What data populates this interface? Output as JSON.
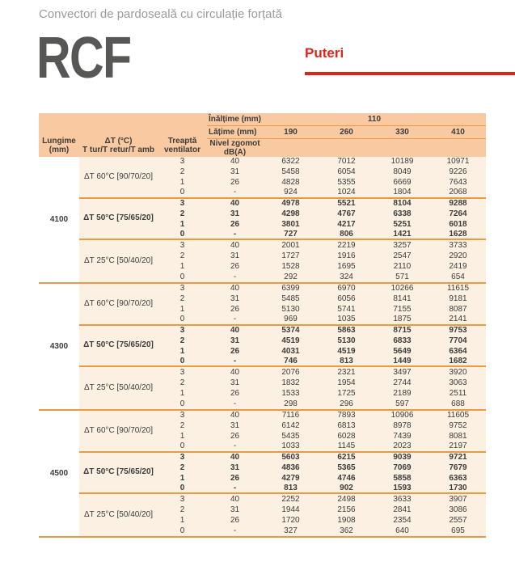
{
  "page": {
    "subtitle": "Convectori de pardoseală cu circulație forțată",
    "product": "RCF",
    "section_label": "Puteri"
  },
  "colors": {
    "accent_red": "#e2231a",
    "header_bg": "#f9c9a2",
    "row_bg": "#fcf0e2",
    "line_orange": "#ec9a3f",
    "text_dark": "#3c3c3b",
    "title_gray": "#575756",
    "subtitle_gray": "#9b9b9a"
  },
  "table": {
    "header": {
      "length_label": "Lungime\n(mm)",
      "dt_label": "ΔT (°C)\nT tur/T retur/T amb",
      "fan_label": "Treaptă\nventilator",
      "noise_label": "Nivel zgomot\ndB(A)",
      "height_label": "Înălțime (mm)",
      "height_value": "110",
      "width_label": "Lățime (mm)",
      "width_values": [
        "190",
        "260",
        "330",
        "410"
      ]
    },
    "fan_steps": [
      "3",
      "2",
      "1",
      "0"
    ],
    "noise_levels": [
      "40",
      "31",
      "26",
      "-"
    ],
    "groups": [
      {
        "length": "4100",
        "dt_blocks": [
          {
            "label": "ΔT 60°C [90/70/20]",
            "bold": false,
            "rows": [
              [
                6322,
                7012,
                10189,
                10971
              ],
              [
                5458,
                6054,
                8049,
                9226
              ],
              [
                4828,
                5355,
                6669,
                7643
              ],
              [
                924,
                1024,
                1804,
                2068
              ]
            ]
          },
          {
            "label": "ΔT 50°C [75/65/20]",
            "bold": true,
            "rows": [
              [
                4978,
                5521,
                8104,
                9288
              ],
              [
                4298,
                4767,
                6338,
                7264
              ],
              [
                3801,
                4217,
                5251,
                6018
              ],
              [
                727,
                806,
                1421,
                1628
              ]
            ]
          },
          {
            "label": "ΔT 25°C [50/40/20]",
            "bold": false,
            "rows": [
              [
                2001,
                2219,
                3257,
                3733
              ],
              [
                1727,
                1916,
                2547,
                2920
              ],
              [
                1528,
                1695,
                2110,
                2419
              ],
              [
                292,
                324,
                571,
                654
              ]
            ]
          }
        ]
      },
      {
        "length": "4300",
        "dt_blocks": [
          {
            "label": "ΔT 60°C [90/70/20]",
            "bold": false,
            "rows": [
              [
                6399,
                6970,
                10266,
                11615
              ],
              [
                5485,
                6056,
                8141,
                9181
              ],
              [
                5130,
                5741,
                7155,
                8087
              ],
              [
                969,
                1035,
                1875,
                2141
              ]
            ]
          },
          {
            "label": "ΔT 50°C [75/65/20]",
            "bold": true,
            "rows": [
              [
                5374,
                5863,
                8715,
                9753
              ],
              [
                4519,
                5130,
                6833,
                7704
              ],
              [
                4031,
                4519,
                5649,
                6364
              ],
              [
                746,
                813,
                1449,
                1682
              ]
            ]
          },
          {
            "label": "ΔT 25°C [50/40/20]",
            "bold": false,
            "rows": [
              [
                2076,
                2321,
                3497,
                3920
              ],
              [
                1832,
                1954,
                2744,
                3063
              ],
              [
                1533,
                1725,
                2189,
                2511
              ],
              [
                298,
                296,
                597,
                688
              ]
            ]
          }
        ]
      },
      {
        "length": "4500",
        "dt_blocks": [
          {
            "label": "ΔT 60°C [90/70/20]",
            "bold": false,
            "rows": [
              [
                7116,
                7893,
                10906,
                11605
              ],
              [
                6142,
                6813,
                8978,
                9752
              ],
              [
                5435,
                6028,
                7439,
                8081
              ],
              [
                1033,
                1145,
                2023,
                2197
              ]
            ]
          },
          {
            "label": "ΔT 50°C [75/65/20]",
            "bold": true,
            "rows": [
              [
                5603,
                6215,
                9039,
                9721
              ],
              [
                4836,
                5365,
                7069,
                7679
              ],
              [
                4279,
                4746,
                5858,
                6363
              ],
              [
                813,
                902,
                1593,
                1730
              ]
            ]
          },
          {
            "label": "ΔT 25°C [50/40/20]",
            "bold": false,
            "rows": [
              [
                2252,
                2498,
                3633,
                3907
              ],
              [
                1944,
                2156,
                2841,
                3086
              ],
              [
                1720,
                1908,
                2354,
                2557
              ],
              [
                327,
                362,
                640,
                695
              ]
            ]
          }
        ]
      }
    ]
  }
}
